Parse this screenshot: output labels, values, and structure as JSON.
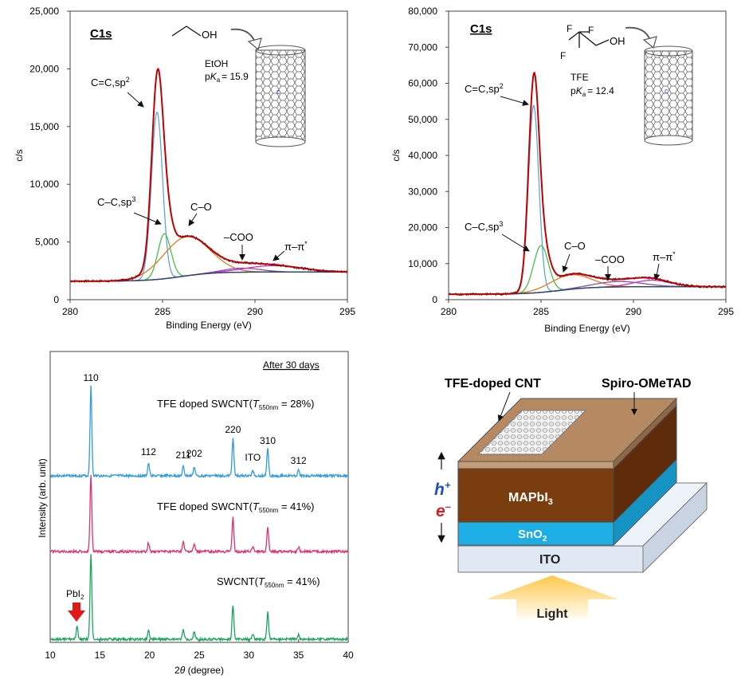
{
  "colors": {
    "envelope": "#c00000",
    "csp2": "#5aa7d6",
    "csp3": "#45c04a",
    "co": "#e07b24",
    "coo": "#8a4fb0",
    "pipi": "#d02cc8",
    "background": "#2e4a6e",
    "raw": "#111111",
    "xrd_top": "#2f9be0",
    "xrd_mid": "#e0306e",
    "xrd_bot": "#18a65a",
    "ito": "#dfe8f3",
    "sno2": "#1eaee6",
    "mapbi": "#7a3d10",
    "spiro": "#b58a62",
    "hole": "#1f4fbf",
    "electron": "#d81e1e",
    "light": "#ffd266"
  },
  "chart_data": [
    {
      "type": "line",
      "id": "xps_etoh",
      "title": "C1s",
      "xlabel": "Binding Energy (eV)",
      "ylabel": "c/s",
      "xlim": [
        280,
        295
      ],
      "ylim": [
        0,
        25000
      ],
      "xticks": [
        "280",
        "285",
        "290",
        "295"
      ],
      "yticks": [
        "0",
        "5,000",
        "10,000",
        "15,000",
        "20,000",
        "25,000"
      ],
      "annotations": {
        "molecule_name": "EtOH",
        "pka_prefix": "p",
        "pka_k": "K",
        "pka_sub": "a",
        "pka_value": "= 15.9",
        "oh_label": "OH",
        "csp2": "C=C,sp",
        "csp2_sup": "2",
        "csp3": "C–C,sp",
        "csp3_sup": "3",
        "co": "C–O",
        "coo": "–COO",
        "pipi": "π–π",
        "pipi_sup": "*"
      },
      "peaks": {
        "background": {
          "baseline_low": 1600,
          "baseline_high": 2400,
          "step_center": 286.0
        },
        "csp2": {
          "center": 284.7,
          "height": 14500,
          "width": 0.3
        },
        "csp3": {
          "center": 285.1,
          "height": 3900,
          "width": 0.35
        },
        "co": {
          "center": 286.3,
          "height": 3400,
          "width": 1.25
        },
        "coo": {
          "center": 289.3,
          "height": 350,
          "width": 1.0
        },
        "pipi": {
          "center": 291.0,
          "height": 550,
          "width": 1.5
        }
      }
    },
    {
      "type": "line",
      "id": "xps_tfe",
      "title": "C1s",
      "xlabel": "Binding Energy (eV)",
      "ylabel": "c/s",
      "xlim": [
        280,
        295
      ],
      "ylim": [
        0,
        80000
      ],
      "xticks": [
        "280",
        "285",
        "290",
        "295"
      ],
      "yticks": [
        "0",
        "10,000",
        "20,000",
        "30,000",
        "40,000",
        "50,000",
        "60,000",
        "70,000",
        "80,000"
      ],
      "annotations": {
        "molecule_name": "TFE",
        "pka_prefix": "p",
        "pka_k": "K",
        "pka_sub": "a",
        "pka_value": "= 12.4",
        "oh_label": "OH",
        "f_label": "F",
        "csp2": "C=C,sp",
        "csp2_sup": "2",
        "csp3": "C–C,sp",
        "csp3_sup": "3",
        "co": "C–O",
        "coo": "–COO",
        "pipi": "π–π",
        "pipi_sup": "*"
      },
      "peaks": {
        "background": {
          "baseline_low": 1500,
          "baseline_high": 3600,
          "step_center": 286.0
        },
        "csp2": {
          "center": 284.6,
          "height": 52000,
          "width": 0.28
        },
        "csp3": {
          "center": 285.0,
          "height": 13000,
          "width": 0.4
        },
        "co": {
          "center": 286.6,
          "height": 4000,
          "width": 1.1
        },
        "coo": {
          "center": 289.2,
          "height": 1500,
          "width": 1.3
        },
        "pipi": {
          "center": 291.0,
          "height": 1800,
          "width": 1.0
        }
      }
    },
    {
      "type": "line",
      "id": "xrd",
      "xlabel_prefix": "2",
      "xlabel_theta": "θ",
      "xlabel_suffix": " (degree)",
      "ylabel": "Intensity (arb. unit)",
      "xlim": [
        10,
        40
      ],
      "xticks": [
        "10",
        "15",
        "20",
        "25",
        "30",
        "35",
        "40"
      ],
      "header": "After 30 days",
      "series": [
        {
          "name_main": "TFE doped SWCNT(",
          "name_t": "T",
          "name_sub": "550nm",
          "name_end": " = 28%)"
        },
        {
          "name_main": "TFE doped SWCNT(",
          "name_t": "T",
          "name_sub": "550nm",
          "name_end": " = 41%)"
        },
        {
          "name_main": "SWCNT(",
          "name_t": "T",
          "name_sub": "550nm",
          "name_end": " = 41%)"
        }
      ],
      "peak_labels": [
        {
          "label": "110",
          "two_theta": 14.1
        },
        {
          "label": "112",
          "two_theta": 19.9
        },
        {
          "label": "211",
          "two_theta": 23.4
        },
        {
          "label": "202",
          "two_theta": 24.5
        },
        {
          "label": "220",
          "two_theta": 28.4
        },
        {
          "label": "ITO",
          "two_theta": 30.4
        },
        {
          "label": "310",
          "two_theta": 31.9
        },
        {
          "label": "312",
          "two_theta": 35.0
        }
      ],
      "pbi2": {
        "label_main": "PbI",
        "label_sub": "2",
        "two_theta": 12.7
      },
      "peaks": [
        {
          "pos": 12.7,
          "h": [
            0,
            0,
            0.14
          ]
        },
        {
          "pos": 14.1,
          "h": [
            1.0,
            0.85,
            0.95
          ]
        },
        {
          "pos": 19.9,
          "h": [
            0.14,
            0.1,
            0.1
          ]
        },
        {
          "pos": 23.4,
          "h": [
            0.1,
            0.1,
            0.1
          ]
        },
        {
          "pos": 24.5,
          "h": [
            0.1,
            0.08,
            0.08
          ]
        },
        {
          "pos": 28.4,
          "h": [
            0.42,
            0.38,
            0.38
          ]
        },
        {
          "pos": 30.4,
          "h": [
            0.06,
            0.06,
            0.06
          ]
        },
        {
          "pos": 31.9,
          "h": [
            0.3,
            0.27,
            0.3
          ]
        },
        {
          "pos": 35.0,
          "h": [
            0.06,
            0.05,
            0.05
          ]
        }
      ]
    }
  ],
  "device": {
    "label_cnt": "TFE-doped CNT",
    "label_spiro": "Spiro-OMeTAD",
    "label_mapbi_main": "MAPbI",
    "label_mapbi_sub": "3",
    "label_sno2_main": "SnO",
    "label_sno2_sub": "2",
    "label_ito": "ITO",
    "label_light": "Light",
    "hole_main": "h",
    "hole_sup": "+",
    "electron_main": "e",
    "electron_sup": "–"
  }
}
